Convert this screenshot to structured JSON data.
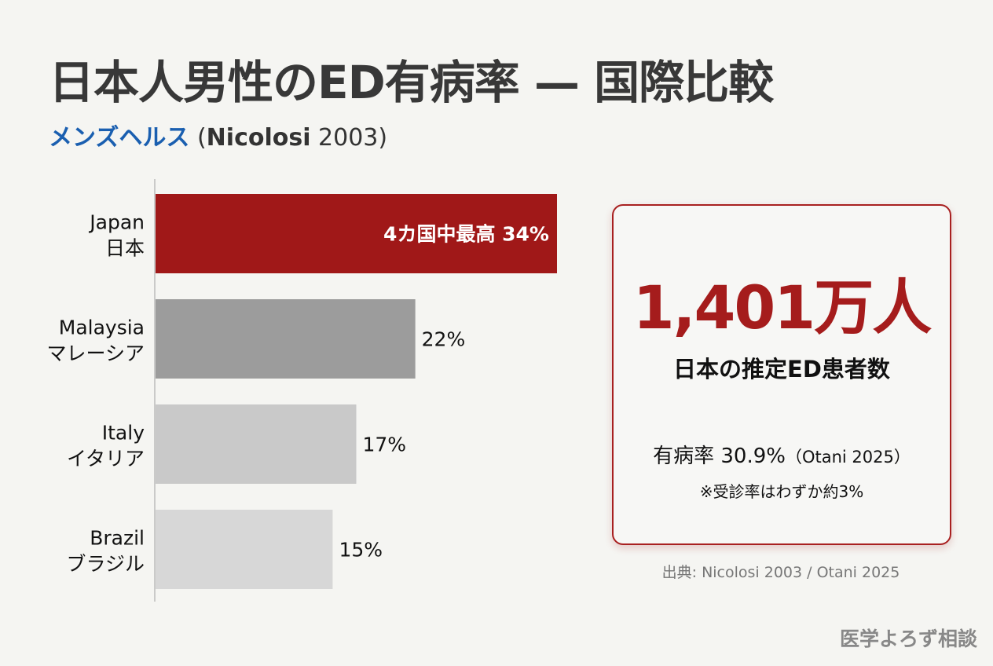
{
  "title": "日本人男性のED有病率 — 国際比較",
  "subtitle": {
    "brand": "メンズヘルス",
    "citation_author": "Nicolosi",
    "citation_year": "2003"
  },
  "chart_data": {
    "type": "bar",
    "orientation": "horizontal",
    "categories": [
      {
        "en": "Japan",
        "ja": "日本"
      },
      {
        "en": "Malaysia",
        "ja": "マレーシア"
      },
      {
        "en": "Italy",
        "ja": "イタリア"
      },
      {
        "en": "Brazil",
        "ja": "ブラジル"
      }
    ],
    "values": [
      34,
      22,
      17,
      15
    ],
    "unit": "%",
    "data_labels": [
      "4カ国中最高 34%",
      "22%",
      "17%",
      "15%"
    ],
    "colors": [
      "#a01818",
      "#9c9c9c",
      "#c9c9c9",
      "#d7d7d7"
    ],
    "xlim": [
      0,
      34
    ],
    "grid": false
  },
  "callout": {
    "big_number": "1,401万人",
    "label": "日本の推定ED患者数",
    "prevalence": "有病率 30.9%",
    "prevalence_source": "（Otani 2025）",
    "note": "※受診率はわずか約3%"
  },
  "source": "出典: Nicolosi 2003 / Otani 2025",
  "watermark": "医学よろず相談",
  "colors": {
    "accent": "#a51c1c",
    "brand": "#1a5fb0"
  }
}
